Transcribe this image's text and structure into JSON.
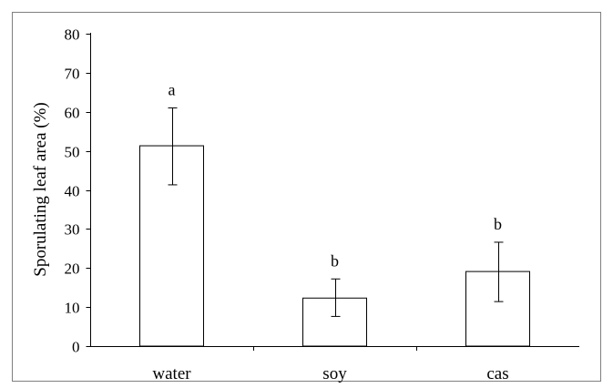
{
  "chart_data": {
    "type": "bar",
    "title": "",
    "xlabel": "",
    "ylabel": "Sporulating leaf area (%)",
    "ylim": [
      0,
      80
    ],
    "yticks": [
      0,
      10,
      20,
      30,
      40,
      50,
      60,
      70,
      80
    ],
    "grid": false,
    "legend": "none",
    "categories": [
      "water",
      "soy",
      "cas"
    ],
    "values": [
      51.3,
      12.3,
      19.1
    ],
    "error_bars": [
      {
        "low": 41.3,
        "high": 61.0
      },
      {
        "low": 7.6,
        "high": 17.2
      },
      {
        "low": 11.4,
        "high": 26.6
      }
    ],
    "significance_labels": [
      "a",
      "b",
      "b"
    ],
    "bar_fill": "#ffffff",
    "bar_stroke": "#000000",
    "frame_color": "#7f7f7f"
  }
}
